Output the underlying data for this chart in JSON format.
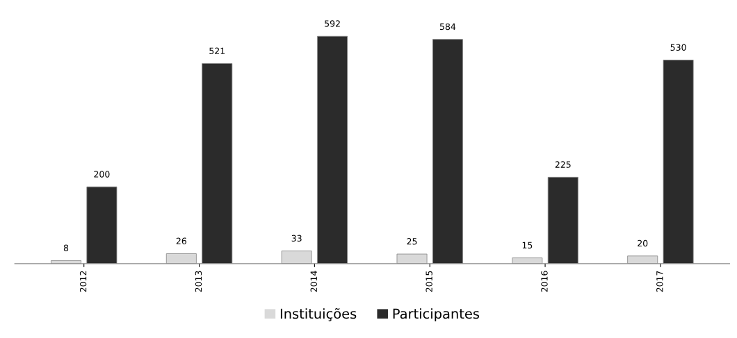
{
  "chart_data": {
    "type": "bar",
    "categories": [
      "2012",
      "2013",
      "2014",
      "2015",
      "2016",
      "2017"
    ],
    "series": [
      {
        "name": "Instituições",
        "color": "#d9d9d9",
        "values": [
          8,
          26,
          33,
          25,
          15,
          20
        ]
      },
      {
        "name": "Participantes",
        "color": "#2b2b2b",
        "values": [
          200,
          521,
          592,
          584,
          225,
          530
        ]
      }
    ],
    "data_labels": true,
    "legend": "bottom",
    "grid": false
  }
}
